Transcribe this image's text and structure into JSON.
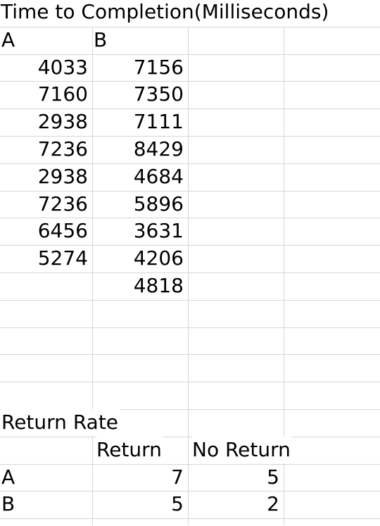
{
  "time_table": {
    "title": "Time to Completion(Milliseconds)",
    "columns": [
      {
        "header": "A",
        "values": [
          4033,
          7160,
          2938,
          7236,
          2938,
          7236,
          6456,
          5274
        ]
      },
      {
        "header": "B",
        "values": [
          7156,
          7350,
          7111,
          8429,
          4684,
          5896,
          3631,
          4206,
          4818
        ]
      }
    ]
  },
  "return_table": {
    "title": "Return Rate",
    "headers": [
      "Return",
      "No Return"
    ],
    "rows": [
      {
        "label": "A",
        "values": [
          7,
          5
        ]
      },
      {
        "label": "B",
        "values": [
          5,
          2
        ]
      }
    ]
  }
}
